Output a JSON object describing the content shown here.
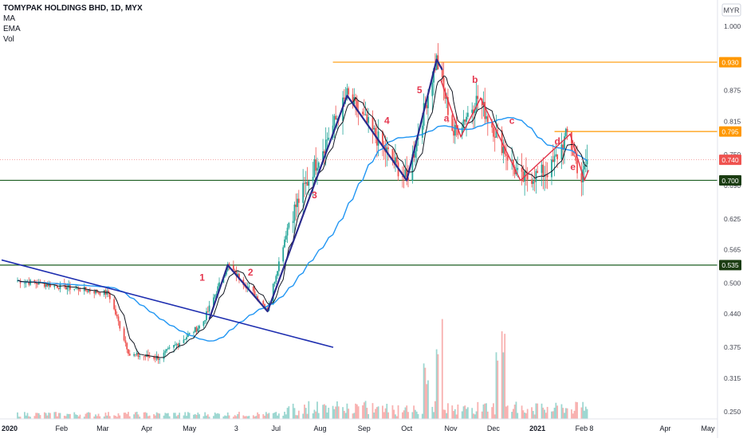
{
  "legend": {
    "symbol": "TOMYPAK HOLDINGS BHD, 1D, MYX",
    "indicators": [
      "MA",
      "EMA",
      "Vol"
    ]
  },
  "currency": "MYR",
  "colors": {
    "up_candle": "#26a69a",
    "down_candle": "#ef5350",
    "ma_line": "#2196f3",
    "ema_line": "#131722",
    "wave_line": "#2a2a8c",
    "trend_line": "#1f2fb0",
    "abc_line": "#e0334a",
    "resistance_line": "#ff9800",
    "support_line": "#1b5e20",
    "current_price_line": "#f28b8b",
    "volume_ma": "#ff9800"
  },
  "chart_data": {
    "type": "candlestick",
    "x_axis_labels": [
      "2020",
      "Feb",
      "Mar",
      "Apr",
      "May",
      "3",
      "Jul",
      "Aug",
      "Sep",
      "Oct",
      "Nov",
      "Dec",
      "2021",
      "Feb",
      "8",
      "Apr",
      "May"
    ],
    "y_axis_ticks": [
      "1.000",
      "0.875",
      "0.815",
      "0.750",
      "0.690",
      "0.625",
      "0.565",
      "0.500",
      "0.440",
      "0.375",
      "0.315",
      "0.250"
    ],
    "ylim": [
      0.245,
      1.02
    ],
    "price_tags": [
      {
        "label": "0.930",
        "value": 0.93,
        "type": "resistance"
      },
      {
        "label": "0.795",
        "value": 0.795,
        "type": "resistance"
      },
      {
        "label": "0.740",
        "value": 0.74,
        "type": "current"
      },
      {
        "label": "0.700",
        "value": 0.7,
        "type": "support"
      },
      {
        "label": "0.535",
        "value": 0.535,
        "type": "support"
      }
    ],
    "wave_labels": [
      "1",
      "2",
      "3",
      "4",
      "5",
      "a",
      "b",
      "c",
      "d",
      "e"
    ],
    "price_anchors": [
      {
        "date": "2020-01-01",
        "price": 0.505
      },
      {
        "date": "2020-02-10",
        "price": 0.49
      },
      {
        "date": "2020-03-05",
        "price": 0.48
      },
      {
        "date": "2020-03-20",
        "price": 0.36
      },
      {
        "date": "2020-04-10",
        "price": 0.355
      },
      {
        "date": "2020-05-10",
        "price": 0.42
      },
      {
        "date": "2020-05-28",
        "price": 0.535
      },
      {
        "date": "2020-06-25",
        "price": 0.45
      },
      {
        "date": "2020-07-10",
        "price": 0.62
      },
      {
        "date": "2020-08-20",
        "price": 0.865
      },
      {
        "date": "2020-10-01",
        "price": 0.7
      },
      {
        "date": "2020-10-22",
        "price": 0.935
      },
      {
        "date": "2020-11-03",
        "price": 0.79
      },
      {
        "date": "2020-11-20",
        "price": 0.86
      },
      {
        "date": "2020-12-20",
        "price": 0.7
      },
      {
        "date": "2021-01-10",
        "price": 0.72
      },
      {
        "date": "2021-01-22",
        "price": 0.79
      },
      {
        "date": "2021-02-01",
        "price": 0.7
      },
      {
        "date": "2021-02-05",
        "price": 0.74
      }
    ],
    "volume_spikes": [
      {
        "date": "2020-10-15",
        "relative": 0.55
      },
      {
        "date": "2020-10-24",
        "relative": 1.0
      },
      {
        "date": "2020-12-07",
        "relative": 0.95
      },
      {
        "date": "2020-12-05",
        "relative": 0.8
      }
    ]
  }
}
